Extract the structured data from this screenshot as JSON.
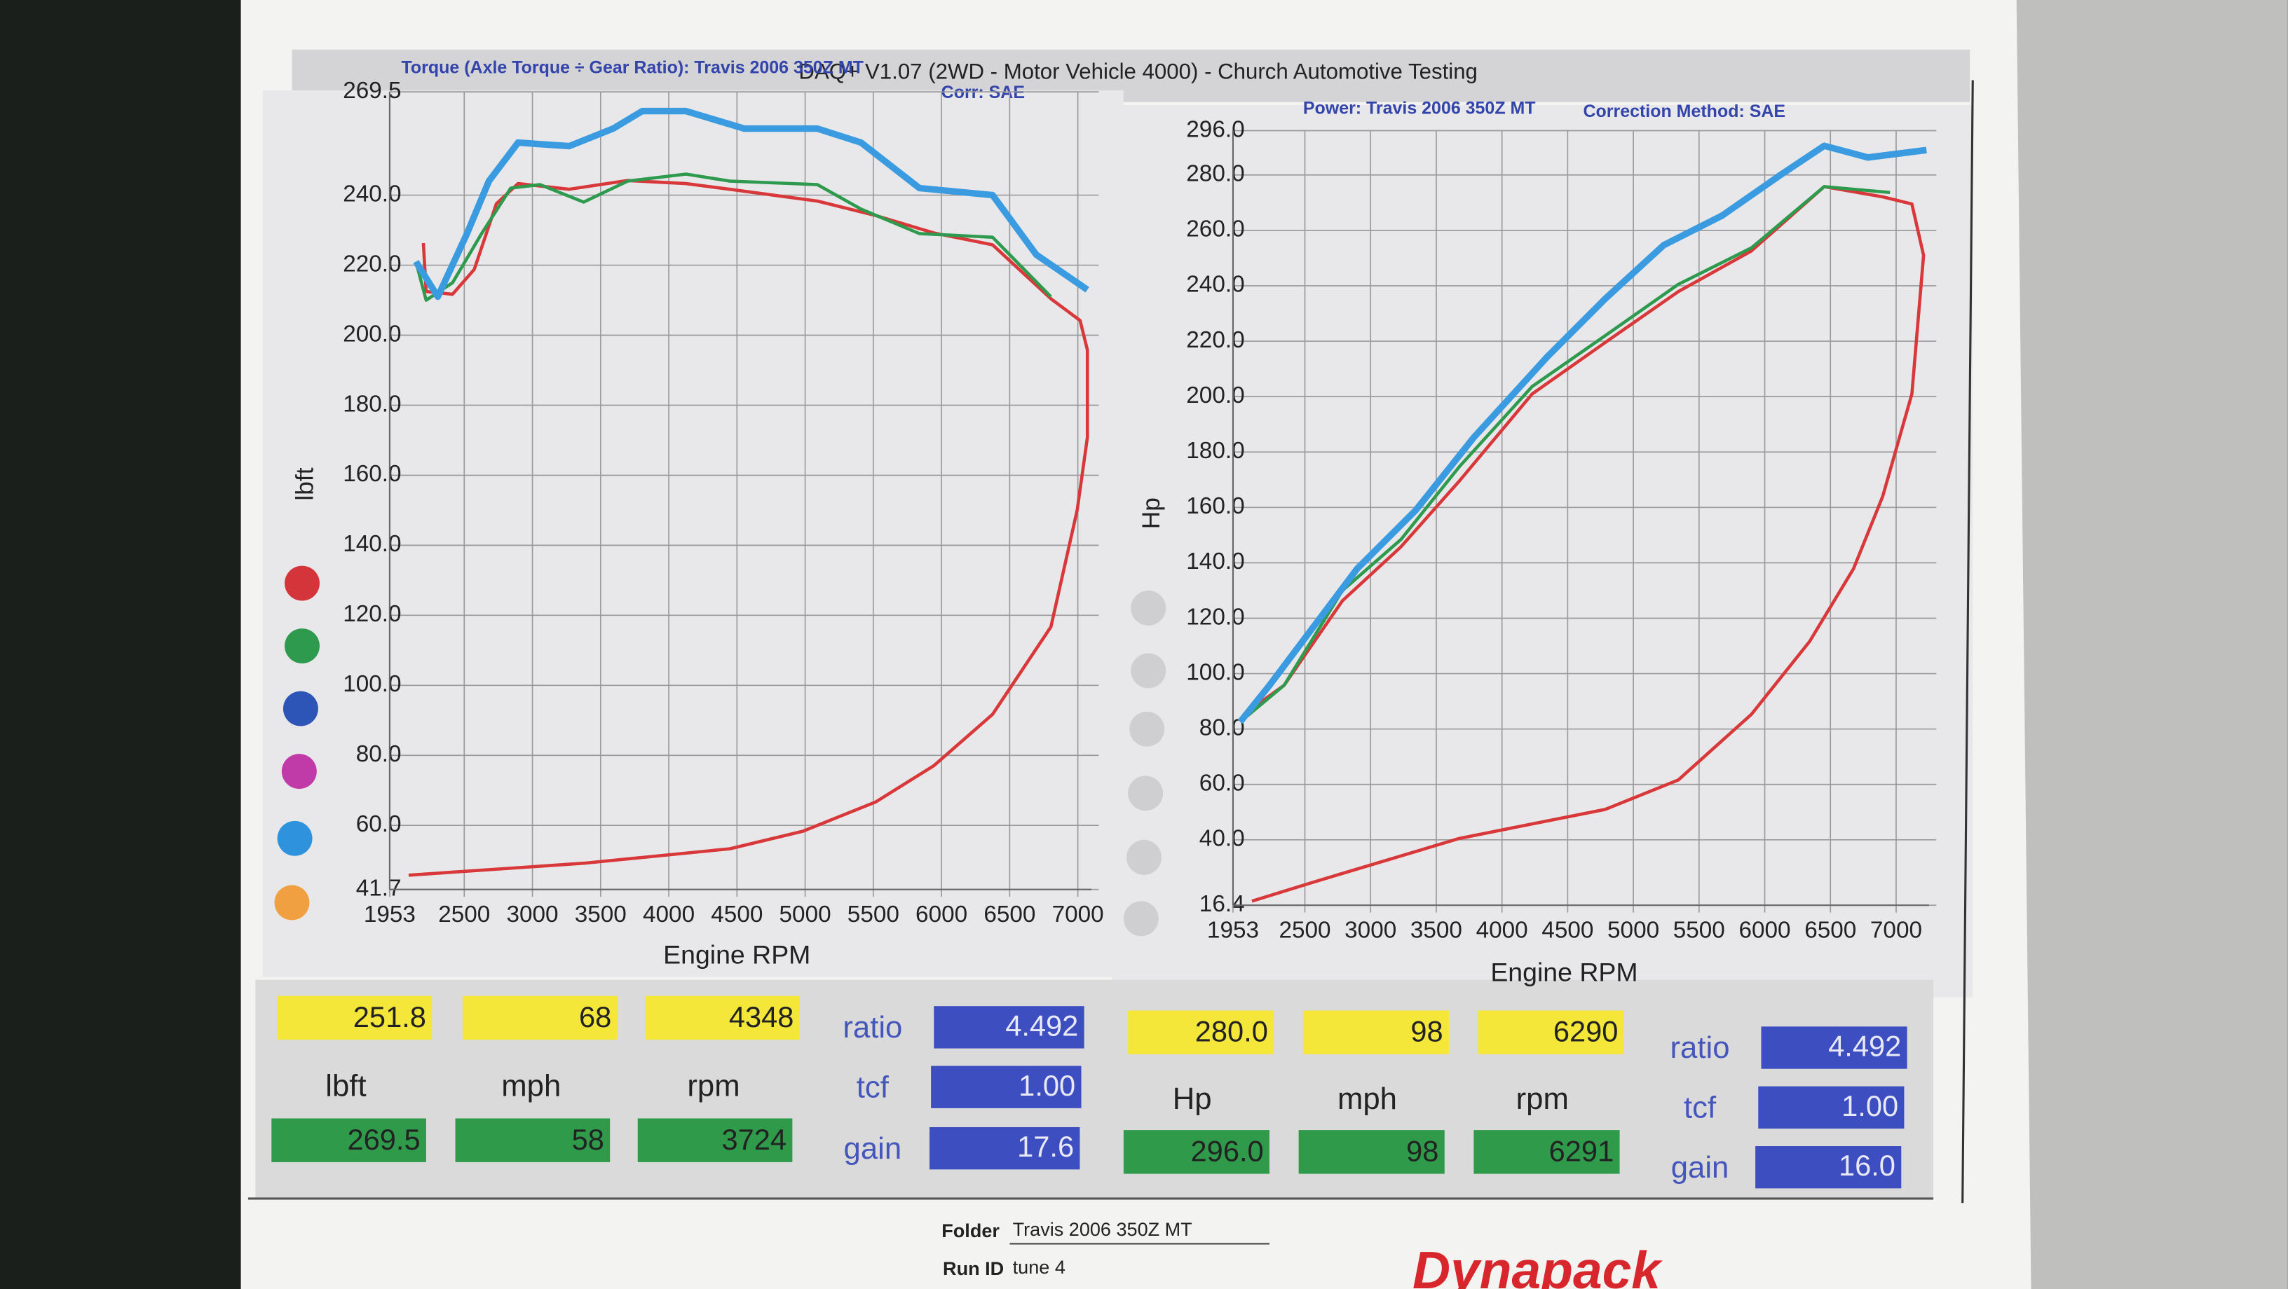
{
  "header": {
    "title": "DAQ+ V1.07 (2WD - Motor Vehicle 4000) - Church Automotive Testing"
  },
  "chart_data": [
    {
      "type": "line",
      "subtitle": "Torque (Axle Torque ÷ Gear Ratio): Travis 2006 350Z MT",
      "correction": "Corr: SAE",
      "ylabel": "lbft",
      "xlabel": "Engine RPM",
      "xlim": [
        1953,
        7100
      ],
      "xticks": [
        1953,
        2500,
        3000,
        3500,
        4000,
        4500,
        5000,
        5500,
        6000,
        6500,
        7000
      ],
      "ylim": [
        41.7,
        269.5
      ],
      "yticks": [
        41.7,
        {
          "value": 60,
          "label": "60.0"
        },
        {
          "value": 80,
          "label": "80.0"
        },
        {
          "value": 100,
          "label": "100.0"
        },
        {
          "value": 120,
          "label": "120.0"
        },
        {
          "value": 140,
          "label": "140.0"
        },
        {
          "value": 160,
          "label": "160.0"
        },
        {
          "value": 180,
          "label": "180.0"
        },
        {
          "value": 200,
          "label": "200.0"
        },
        {
          "value": 220,
          "label": "220.0"
        },
        {
          "value": 240,
          "label": "240.0"
        },
        269.5
      ],
      "grid": true,
      "series": [
        {
          "color": "#d9383a",
          "x": [
            2200,
            2221,
            2414,
            2574,
            2735,
            2895,
            3270,
            3698,
            4126,
            4447,
            5089,
            5517,
            5945,
            6374,
            6802,
            7017,
            7070,
            7070,
            6995,
            6802,
            6374,
            5945,
            5517,
            4982,
            4447,
            3377,
            2092
          ],
          "values": [
            226.3,
            212.5,
            211.7,
            218.8,
            237.5,
            243.3,
            241.7,
            244.2,
            243.3,
            241.7,
            238.3,
            234.2,
            229.2,
            225.8,
            210.4,
            204.2,
            195.8,
            170.8,
            150,
            116.7,
            91.7,
            77.1,
            66.7,
            58.3,
            53.3,
            49.2,
            45.8
          ]
        },
        {
          "color": "#2e9a4e",
          "x": [
            2146,
            2221,
            2414,
            2627,
            2841,
            3055,
            3376,
            3698,
            4126,
            4447,
            5089,
            5410,
            5838,
            6374,
            6802
          ],
          "values": [
            221,
            210,
            215,
            229,
            242,
            243,
            238,
            244,
            246,
            244,
            243,
            236,
            229,
            228,
            211
          ]
        },
        {
          "color": "#3a9be0",
          "x": [
            2146,
            2306,
            2520,
            2681,
            2895,
            3270,
            3591,
            3805,
            4126,
            4554,
            5089,
            5410,
            5838,
            6374,
            6695,
            7070
          ],
          "values": [
            221,
            211,
            229,
            244,
            255,
            254,
            259,
            264,
            264,
            259,
            259,
            255,
            242,
            240,
            223,
            213
          ]
        }
      ]
    },
    {
      "type": "line",
      "subtitle": "Power: Travis 2006 350Z MT",
      "correction": "Correction Method: SAE",
      "ylabel": "Hp",
      "xlabel": "Engine RPM",
      "xlim": [
        1953,
        7250
      ],
      "xticks": [
        1953,
        2500,
        3000,
        3500,
        4000,
        4500,
        5000,
        5500,
        6000,
        6500,
        7000
      ],
      "ylim": [
        16.4,
        296
      ],
      "yticks": [
        16.4,
        {
          "value": 40,
          "label": "40.0"
        },
        {
          "value": 60,
          "label": "60.0"
        },
        {
          "value": 80,
          "label": "80.0"
        },
        {
          "value": 100,
          "label": "100.0"
        },
        {
          "value": 120,
          "label": "120.0"
        },
        {
          "value": 140,
          "label": "140.0"
        },
        {
          "value": 160,
          "label": "160.0"
        },
        {
          "value": 180,
          "label": "180.0"
        },
        {
          "value": 200,
          "label": "200.0"
        },
        {
          "value": 220,
          "label": "220.0"
        },
        {
          "value": 240,
          "label": "240.0"
        },
        {
          "value": 260,
          "label": "260.0"
        },
        {
          "value": 280,
          "label": "280.0"
        },
        {
          "value": 296,
          "label": "296.0"
        }
      ],
      "grid": true,
      "series": [
        {
          "color": "#d9383a",
          "x": [
            2064,
            2342,
            2786,
            3231,
            3675,
            4231,
            4786,
            5342,
            5898,
            6453,
            6898,
            7120,
            7209,
            7120,
            6898,
            6676,
            6342,
            5898,
            5342,
            4786,
            3675,
            2564,
            2097
          ],
          "values": [
            86.3,
            95.8,
            126.3,
            145.8,
            169.5,
            201,
            219.5,
            237.9,
            252.6,
            275.8,
            272.1,
            269.5,
            251,
            201,
            164,
            137.9,
            111.6,
            85.3,
            61.6,
            51,
            40.5,
            24.7,
            17.9
          ]
        },
        {
          "color": "#2e9a4e",
          "x": [
            2009,
            2342,
            2786,
            3231,
            3675,
            4231,
            4786,
            5342,
            5898,
            6453,
            6953
          ],
          "values": [
            82.6,
            95.8,
            130,
            148.4,
            174.7,
            203.7,
            222,
            240.5,
            253.7,
            275.8,
            273.7
          ]
        },
        {
          "color": "#3a9be0",
          "x": [
            2009,
            2231,
            2564,
            2898,
            3342,
            3786,
            4342,
            4786,
            5231,
            5675,
            6120,
            6453,
            6786,
            7231
          ],
          "values": [
            82.6,
            95.8,
            116.8,
            137.9,
            158.9,
            185.3,
            214.2,
            235.3,
            254.7,
            265.3,
            280,
            290.5,
            286.3,
            289
          ]
        }
      ]
    }
  ],
  "panels": [
    {
      "current": [
        "251.8",
        "68",
        "4348"
      ],
      "units": [
        "lbft",
        "mph",
        "rpm"
      ],
      "peak": [
        "269.5",
        "58",
        "3724"
      ],
      "labels": [
        "ratio",
        "tcf",
        "gain"
      ],
      "settings": [
        "4.492",
        "1.00",
        "17.6"
      ]
    },
    {
      "current": [
        "280.0",
        "98",
        "6290"
      ],
      "units": [
        "Hp",
        "mph",
        "rpm"
      ],
      "peak": [
        "296.0",
        "98",
        "6291"
      ],
      "labels": [
        "ratio",
        "tcf",
        "gain"
      ],
      "settings": [
        "4.492",
        "1.00",
        "16.0"
      ]
    }
  ],
  "footer": {
    "folder_label": "Folder",
    "folder": "Travis 2006 350Z MT",
    "run_label": "Run ID",
    "run": "tune 4",
    "logo": "Dynapack"
  }
}
